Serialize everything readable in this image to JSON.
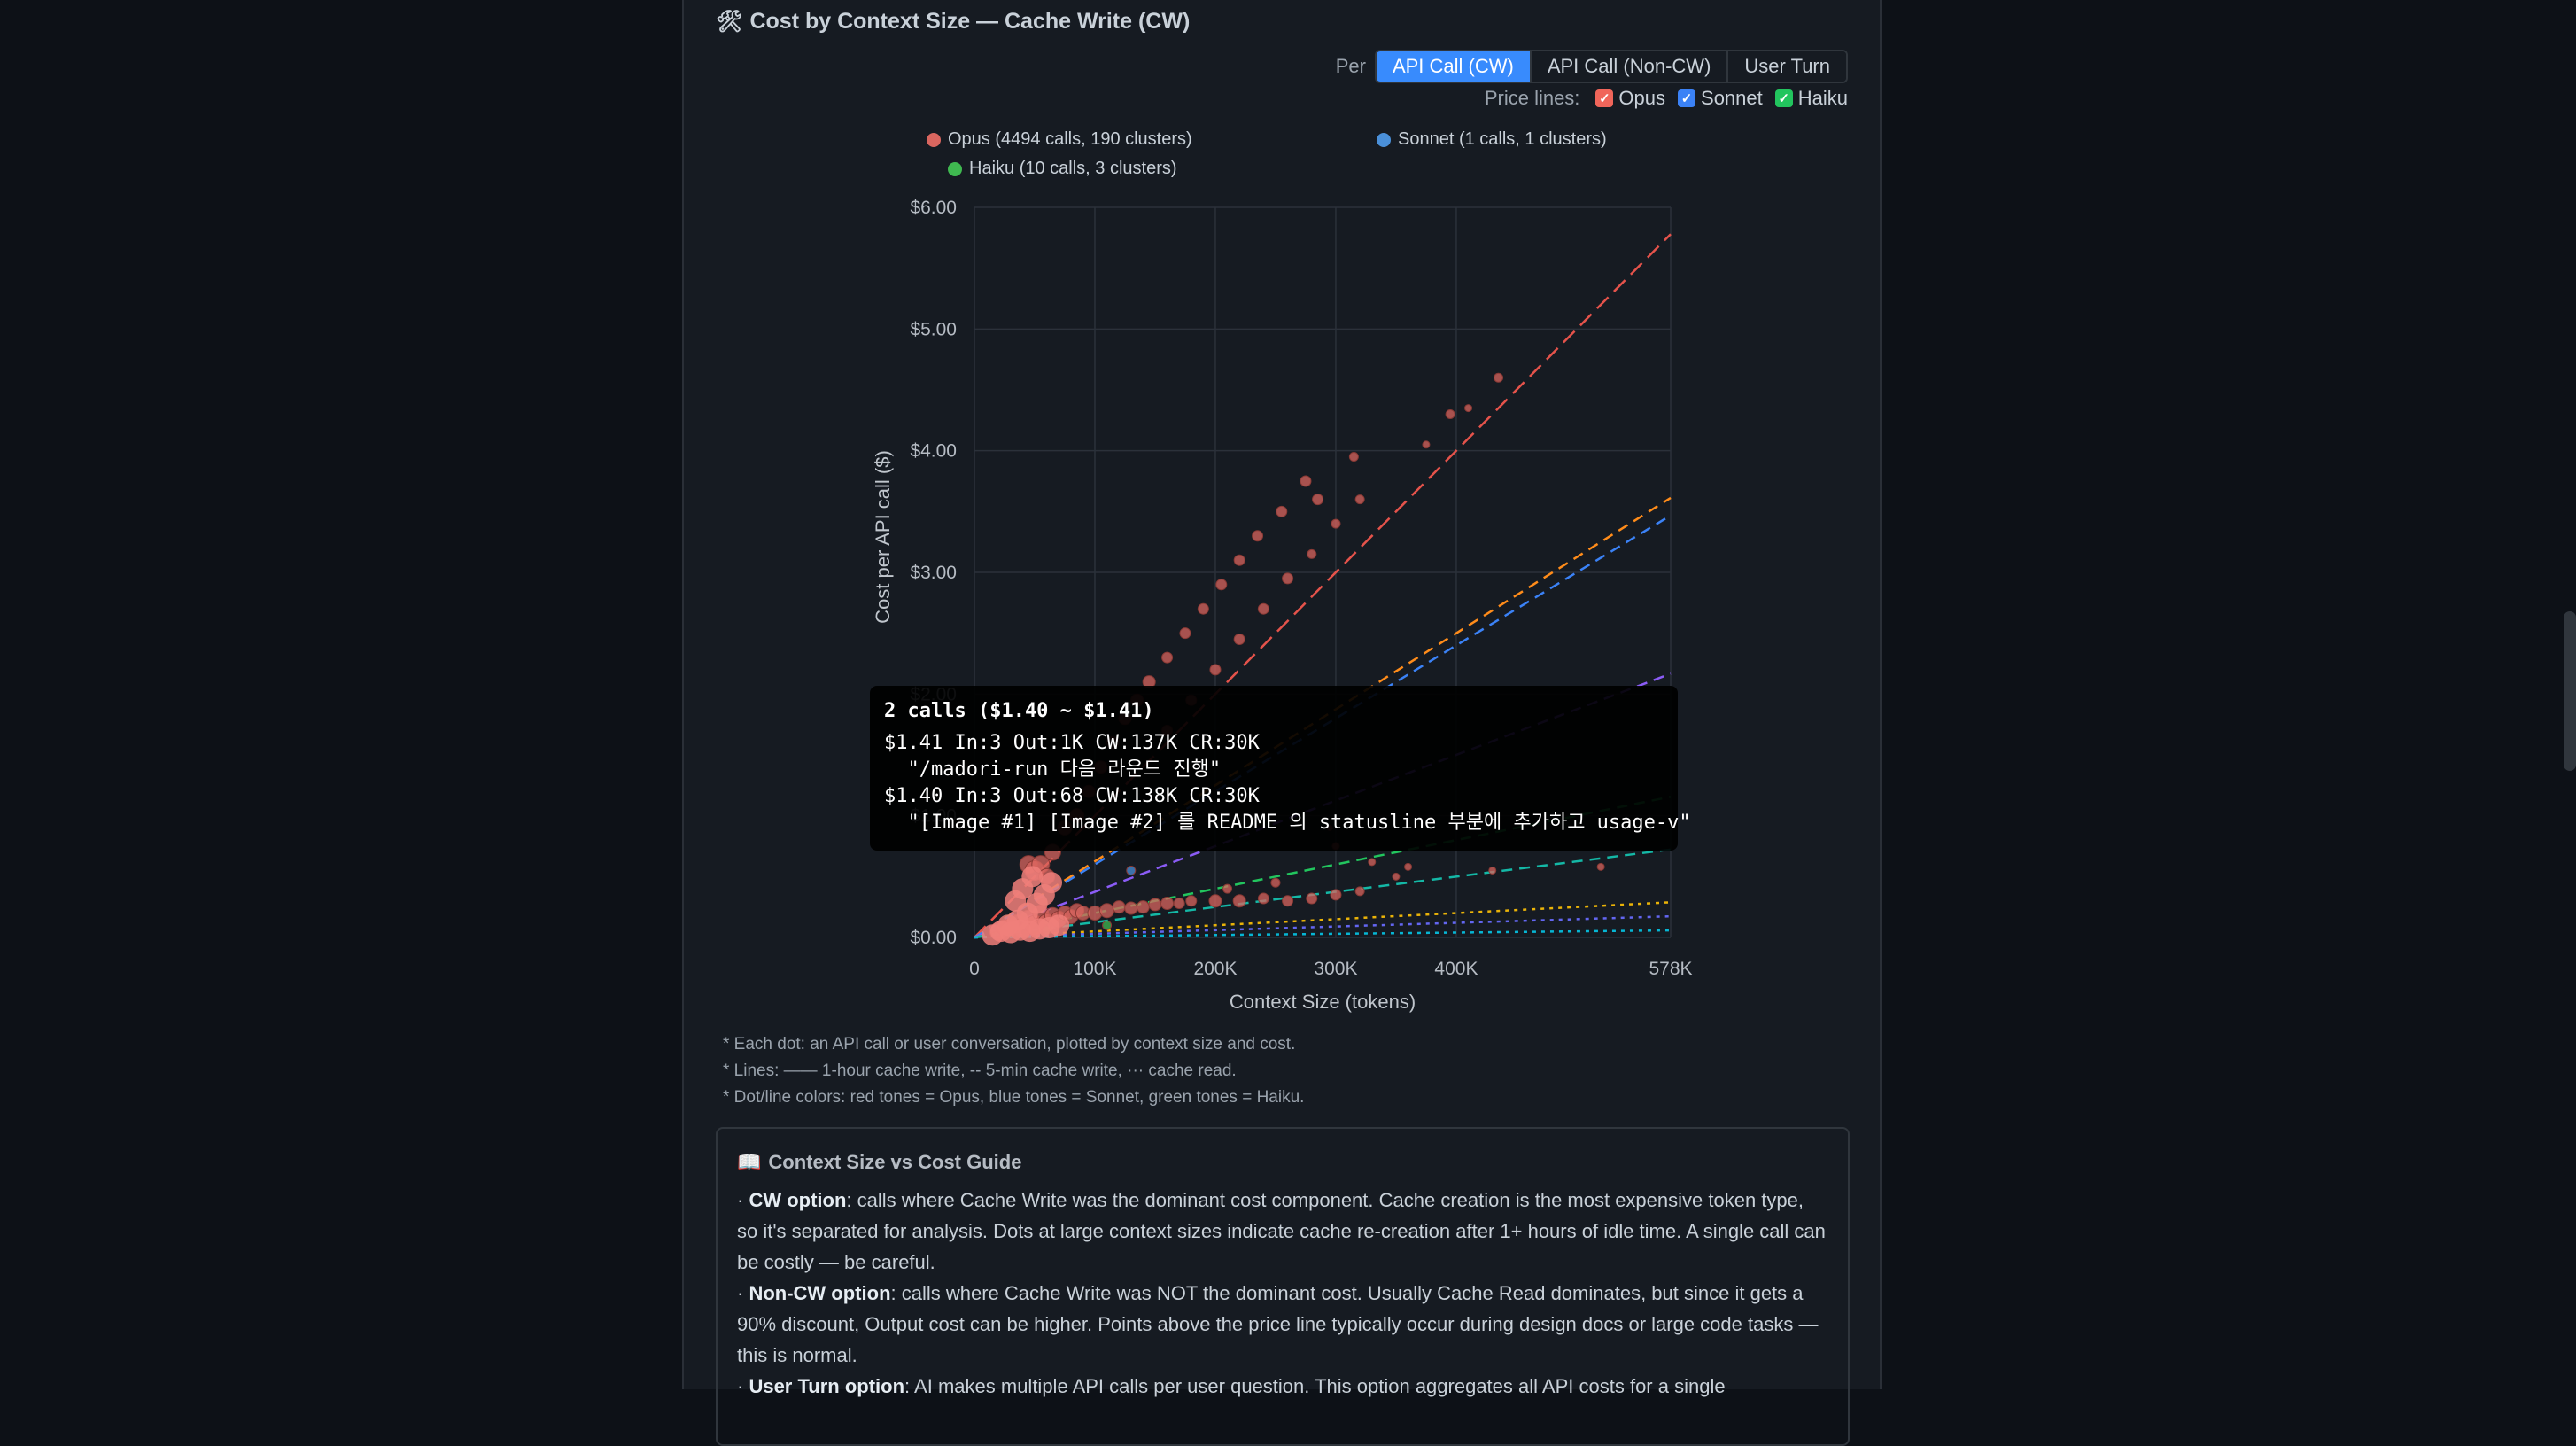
{
  "panel": {
    "title": "Cost by Context Size — Cache Write (CW)",
    "title_icon": "chart-icon"
  },
  "per": {
    "label": "Per",
    "options": [
      "API Call (CW)",
      "API Call (Non-CW)",
      "User Turn"
    ],
    "selected": "API Call (CW)"
  },
  "price_lines": {
    "label": "Price lines:",
    "items": [
      {
        "label": "Opus",
        "checked": true,
        "color": "#f0655a"
      },
      {
        "label": "Sonnet",
        "checked": true,
        "color": "#3b82f6"
      },
      {
        "label": "Haiku",
        "checked": true,
        "color": "#22c55e"
      }
    ]
  },
  "legend": [
    {
      "label": "Opus (4494 calls, 190 clusters)",
      "color": "#d9665f"
    },
    {
      "label": "Sonnet (1 calls, 1 clusters)",
      "color": "#4a90d9"
    },
    {
      "label": "Haiku (10 calls, 3 clusters)",
      "color": "#3fb950"
    }
  ],
  "chart_data": {
    "type": "scatter",
    "xlabel": "Context Size (tokens)",
    "ylabel": "Cost per API call ($)",
    "xlim": [
      0,
      578000
    ],
    "ylim": [
      0,
      6
    ],
    "x_ticks": [
      {
        "value": 0,
        "label": "0"
      },
      {
        "value": 100000,
        "label": "100K"
      },
      {
        "value": 200000,
        "label": "200K"
      },
      {
        "value": 300000,
        "label": "300K"
      },
      {
        "value": 400000,
        "label": "400K"
      },
      {
        "value": 578000,
        "label": "578K"
      }
    ],
    "y_ticks": [
      {
        "value": 0,
        "label": "$0.00"
      },
      {
        "value": 1,
        "label": "$1.00"
      },
      {
        "value": 2,
        "label": "$2.00"
      },
      {
        "value": 3,
        "label": "$3.00"
      },
      {
        "value": 4,
        "label": "$4.00"
      },
      {
        "value": 5,
        "label": "$5.00"
      },
      {
        "value": 6,
        "label": "$6.00"
      }
    ],
    "grid": true,
    "price_lines": [
      {
        "model": "Opus",
        "kind": "1-hour cache write",
        "color": "#e5534b",
        "dash": "long",
        "slope_per_100k": 1.0
      },
      {
        "model": "Opus",
        "kind": "5-min cache write",
        "color": "#ff8c1a",
        "dash": "medium",
        "slope_per_100k": 0.625
      },
      {
        "model": "Sonnet",
        "kind": "1-hour cache write",
        "color": "#3b82f6",
        "dash": "medium",
        "slope_per_100k": 0.6
      },
      {
        "model": "Sonnet",
        "kind": "5-min cache write",
        "color": "#8b5cf6",
        "dash": "medium",
        "slope_per_100k": 0.375
      },
      {
        "model": "Haiku",
        "kind": "1-hour cache write",
        "color": "#22c55e",
        "dash": "medium",
        "slope_per_100k": 0.2
      },
      {
        "model": "Haiku",
        "kind": "5-min cache write",
        "color": "#14b8a6",
        "dash": "medium",
        "slope_per_100k": 0.125
      },
      {
        "model": "Opus",
        "kind": "cache read",
        "color": "#eab308",
        "dash": "dot",
        "slope_per_100k": 0.05
      },
      {
        "model": "Sonnet",
        "kind": "cache read",
        "color": "#6366f1",
        "dash": "dot",
        "slope_per_100k": 0.03
      },
      {
        "model": "Haiku",
        "kind": "cache read",
        "color": "#06b6d4",
        "dash": "dot",
        "slope_per_100k": 0.01
      }
    ],
    "series": [
      {
        "name": "Opus",
        "color": "#d9665f",
        "points": [
          [
            20000,
            0.05,
            10
          ],
          [
            25000,
            0.08,
            9
          ],
          [
            30000,
            0.1,
            8
          ],
          [
            35000,
            0.12,
            9
          ],
          [
            40000,
            0.08,
            11
          ],
          [
            45000,
            0.15,
            10
          ],
          [
            50000,
            0.1,
            11
          ],
          [
            55000,
            0.2,
            9
          ],
          [
            60000,
            0.12,
            10
          ],
          [
            65000,
            0.18,
            9
          ],
          [
            70000,
            0.15,
            9
          ],
          [
            75000,
            0.2,
            8
          ],
          [
            80000,
            0.17,
            8
          ],
          [
            85000,
            0.22,
            8
          ],
          [
            90000,
            0.2,
            8
          ],
          [
            100000,
            0.2,
            8
          ],
          [
            110000,
            0.22,
            8
          ],
          [
            120000,
            0.25,
            7
          ],
          [
            130000,
            0.24,
            7
          ],
          [
            140000,
            0.25,
            7
          ],
          [
            150000,
            0.27,
            7
          ],
          [
            160000,
            0.28,
            7
          ],
          [
            170000,
            0.28,
            6
          ],
          [
            180000,
            0.3,
            6
          ],
          [
            200000,
            0.3,
            7
          ],
          [
            220000,
            0.3,
            7
          ],
          [
            240000,
            0.32,
            6
          ],
          [
            260000,
            0.3,
            6
          ],
          [
            280000,
            0.32,
            6
          ],
          [
            300000,
            0.35,
            6
          ],
          [
            320000,
            0.38,
            5
          ],
          [
            45000,
            0.6,
            10
          ],
          [
            50000,
            0.55,
            11
          ],
          [
            55000,
            0.6,
            10
          ],
          [
            60000,
            0.5,
            9
          ],
          [
            65000,
            0.7,
            9
          ],
          [
            75000,
            0.9,
            8
          ],
          [
            85000,
            1.0,
            8
          ],
          [
            95000,
            1.2,
            7
          ],
          [
            105000,
            1.4,
            7
          ],
          [
            115000,
            1.6,
            7
          ],
          [
            125000,
            1.8,
            7
          ],
          [
            135000,
            1.95,
            7
          ],
          [
            145000,
            2.1,
            7
          ],
          [
            160000,
            2.3,
            6
          ],
          [
            175000,
            2.5,
            6
          ],
          [
            190000,
            2.7,
            6
          ],
          [
            205000,
            2.9,
            6
          ],
          [
            220000,
            3.1,
            6
          ],
          [
            235000,
            3.3,
            6
          ],
          [
            255000,
            3.5,
            6
          ],
          [
            275000,
            3.75,
            6
          ],
          [
            285000,
            3.6,
            6
          ],
          [
            315000,
            3.95,
            5
          ],
          [
            395000,
            4.3,
            5
          ],
          [
            435000,
            4.6,
            5
          ],
          [
            160000,
            1.7,
            6
          ],
          [
            180000,
            1.95,
            6
          ],
          [
            200000,
            2.2,
            6
          ],
          [
            220000,
            2.45,
            6
          ],
          [
            240000,
            2.7,
            6
          ],
          [
            260000,
            2.95,
            6
          ],
          [
            280000,
            3.15,
            5
          ],
          [
            300000,
            3.4,
            5
          ],
          [
            320000,
            3.6,
            5
          ],
          [
            375000,
            4.05,
            4
          ],
          [
            410000,
            4.35,
            4
          ],
          [
            330000,
            0.62,
            4
          ],
          [
            350000,
            0.5,
            4
          ],
          [
            360000,
            0.58,
            4
          ],
          [
            300000,
            0.75,
            4
          ],
          [
            295000,
            0.9,
            3
          ],
          [
            250000,
            0.45,
            5
          ],
          [
            210000,
            0.4,
            5
          ],
          [
            520000,
            0.58,
            4
          ],
          [
            430000,
            0.55,
            4
          ]
        ]
      },
      {
        "name": "Sonnet",
        "color": "#4a90d9",
        "points": [
          [
            130000,
            0.55,
            5
          ]
        ]
      },
      {
        "name": "Haiku",
        "color": "#3fb950",
        "points": [
          [
            30000,
            0.04,
            5
          ],
          [
            60000,
            0.06,
            5
          ],
          [
            110000,
            0.1,
            5
          ]
        ]
      }
    ]
  },
  "tooltip": {
    "title": "2 calls ($1.40 ~ $1.41)",
    "line1": "$1.41 In:3 Out:1K CW:137K CR:30K",
    "line2": "  \"/madori-run 다음 라운드 진행\"",
    "line3": "$1.40 In:3 Out:68 CW:138K CR:30K",
    "line4": "  \"[Image #1] [Image #2] 를 README 의 statusline 부분에 추가하고 usage-v\""
  },
  "notes": [
    "* Each dot: an API call or user conversation, plotted by context size and cost.",
    "* Lines: —— 1-hour cache write, -- 5-min cache write, ··· cache read.",
    "* Dot/line colors: red tones = Opus, blue tones = Sonnet, green tones = Haiku."
  ],
  "guide": {
    "title": "Context Size vs Cost Guide",
    "title_icon": "book-icon",
    "items": [
      {
        "term": "CW option",
        "text": ": calls where Cache Write was the dominant cost component. Cache creation is the most expensive token type, so it's separated for analysis. Dots at large context sizes indicate cache re-creation after 1+ hours of idle time. A single call can be costly — be careful."
      },
      {
        "term": "Non-CW option",
        "text": ": calls where Cache Write was NOT the dominant cost. Usually Cache Read dominates, but since it gets a 90% discount, Output cost can be higher. Points above the price line typically occur during design docs or large code tasks — this is normal."
      },
      {
        "term": "User Turn option",
        "text": ": AI makes multiple API calls per user question. This option aggregates all API costs for a single"
      }
    ]
  }
}
